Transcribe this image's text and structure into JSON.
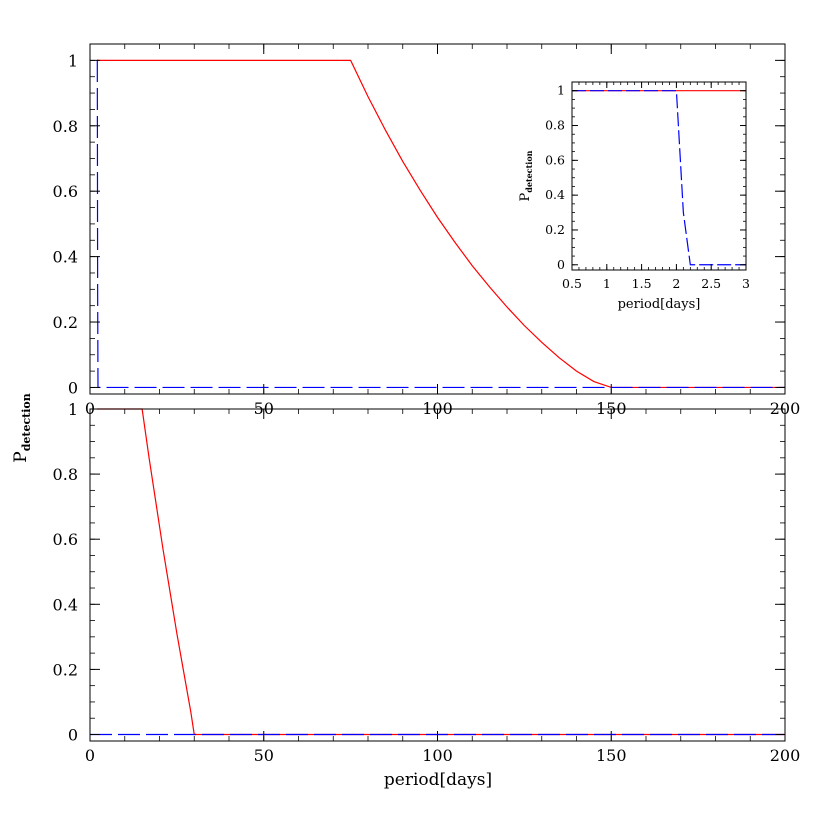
{
  "figure": {
    "ylabel_main": "P",
    "ylabel_sub": "detection",
    "xlabel": "period[days]"
  },
  "chart_data": [
    {
      "type": "line",
      "panel": "top",
      "xlim": [
        0,
        200
      ],
      "ylim": [
        -0.02,
        1.05
      ],
      "xticks": [
        0,
        50,
        100,
        150,
        200
      ],
      "yticks": [
        0,
        0.2,
        0.4,
        0.6,
        0.8,
        1
      ],
      "xtick_labels": [
        "0",
        "50",
        "100",
        "150",
        "200"
      ],
      "ytick_labels": [
        "0",
        "0.2",
        "0.4",
        "0.6",
        "0.8",
        "1"
      ],
      "grid": false,
      "series": [
        {
          "style": "solid",
          "color": "#ff0000",
          "x": [
            2,
            75,
            80,
            85,
            90,
            95,
            100,
            105,
            110,
            115,
            120,
            125,
            130,
            135,
            140,
            145,
            150,
            200
          ],
          "y": [
            1,
            1,
            0.889,
            0.787,
            0.691,
            0.603,
            0.52,
            0.444,
            0.372,
            0.307,
            0.246,
            0.189,
            0.138,
            0.091,
            0.05,
            0.018,
            0,
            0
          ]
        },
        {
          "style": "dashed",
          "color": "#0000ff",
          "x": [
            2,
            2.1,
            2.2,
            2.3,
            200
          ],
          "y": [
            1,
            1,
            0.3,
            0,
            0
          ]
        }
      ]
    },
    {
      "type": "line",
      "panel": "bottom",
      "xlim": [
        0,
        200
      ],
      "ylim": [
        -0.02,
        1.0
      ],
      "xticks": [
        0,
        50,
        100,
        150,
        200
      ],
      "yticks": [
        0,
        0.2,
        0.4,
        0.6,
        0.8,
        1
      ],
      "xtick_labels": [
        "0",
        "50",
        "100",
        "150",
        "200"
      ],
      "ytick_labels": [
        "0",
        "0.2",
        "0.4",
        "0.6",
        "0.8",
        "1"
      ],
      "grid": false,
      "series": [
        {
          "style": "solid",
          "color": "#ff0000",
          "x": [
            2,
            15,
            17,
            19,
            21,
            23,
            25,
            27,
            29,
            30,
            200
          ],
          "y": [
            1,
            1,
            0.85,
            0.71,
            0.57,
            0.44,
            0.31,
            0.19,
            0.07,
            0,
            0
          ]
        },
        {
          "style": "dashed",
          "color": "#0000ff",
          "x": [
            0,
            200
          ],
          "y": [
            0,
            0
          ]
        }
      ]
    },
    {
      "type": "line",
      "panel": "inset",
      "xlabel": "period[days]",
      "xlim": [
        0.5,
        3
      ],
      "ylim": [
        -0.03,
        1.05
      ],
      "xticks": [
        0.5,
        1,
        1.5,
        2,
        2.5,
        3
      ],
      "yticks": [
        0,
        0.2,
        0.4,
        0.6,
        0.8,
        1
      ],
      "xtick_labels": [
        "0.5",
        "1",
        "1.5",
        "2",
        "2.5",
        "3"
      ],
      "ytick_labels": [
        "0",
        "0.2",
        "0.4",
        "0.6",
        "0.8",
        "1"
      ],
      "grid": false,
      "series": [
        {
          "style": "solid",
          "color": "#ff0000",
          "x": [
            0.5,
            3
          ],
          "y": [
            1,
            1
          ]
        },
        {
          "style": "dashed",
          "color": "#0000ff",
          "x": [
            0.5,
            2,
            2.1,
            2.2,
            2.3,
            3
          ],
          "y": [
            1,
            1,
            0.3,
            0,
            0,
            0
          ]
        }
      ]
    }
  ]
}
